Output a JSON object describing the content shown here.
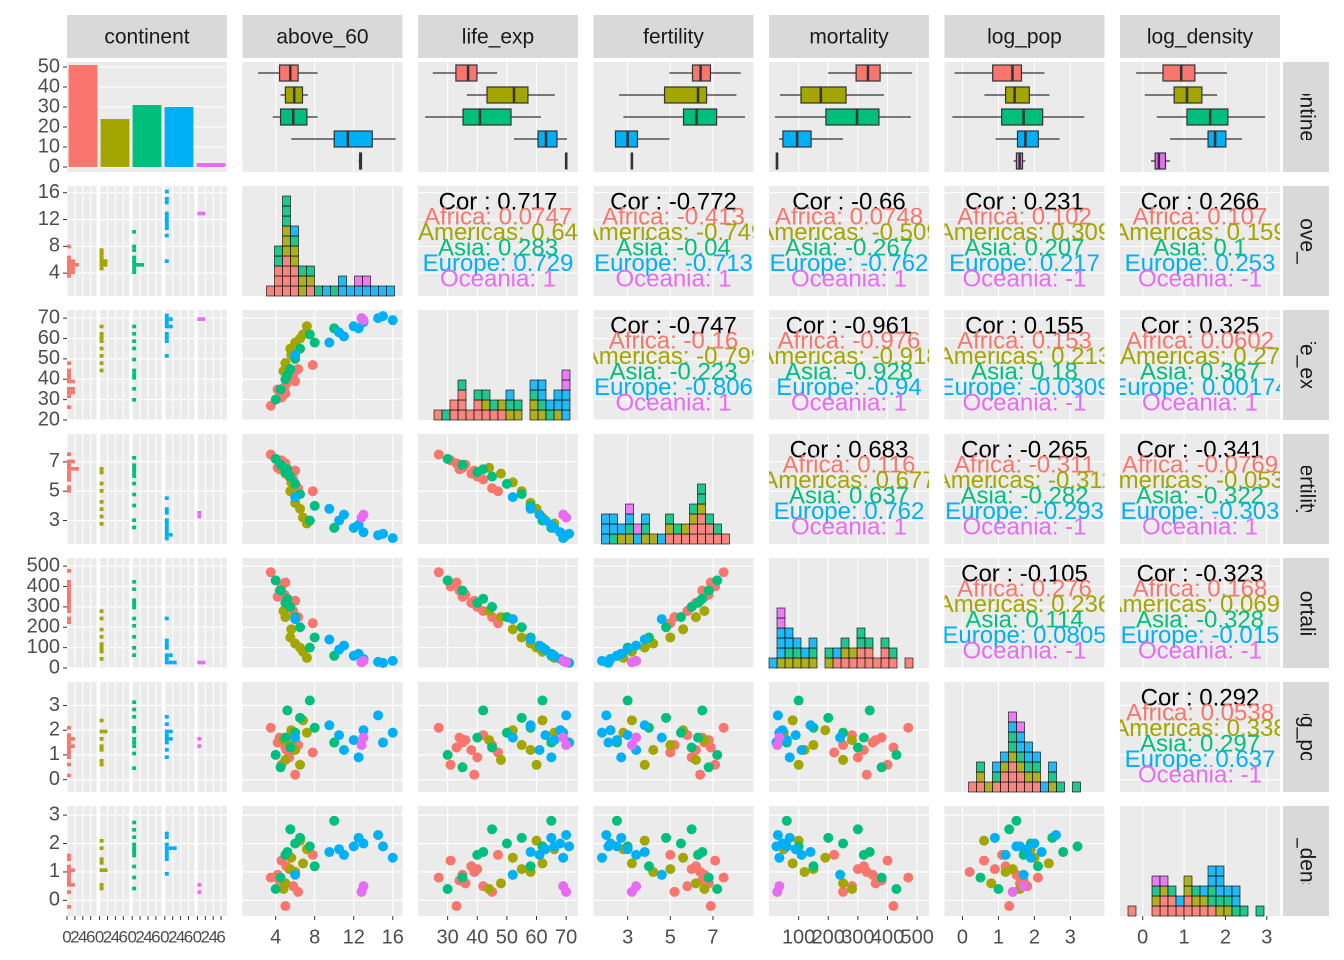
{
  "chart_data": {
    "type": "pairs",
    "variables": [
      "continent",
      "above_60",
      "life_exp",
      "fertility",
      "mortality",
      "log_pop",
      "log_density"
    ],
    "scales": [
      {
        "lim": [
          -2.5,
          52.5
        ],
        "yticks": [
          0,
          10,
          20,
          30,
          40,
          50
        ],
        "count_lim": [
          0,
          7.5
        ],
        "count_ticks": [
          0,
          2,
          4,
          6
        ]
      },
      {
        "lim": [
          0.6,
          17
        ],
        "xticks": [
          4,
          8,
          12,
          16
        ],
        "yticks": [
          4,
          8,
          12,
          16
        ]
      },
      {
        "lim": [
          20,
          74
        ],
        "xticks": [
          30,
          40,
          50,
          60,
          70
        ],
        "yticks": [
          20,
          30,
          40,
          50,
          60,
          70
        ]
      },
      {
        "lim": [
          1.4,
          8.9
        ],
        "xticks": [
          3,
          5,
          7
        ],
        "yticks": [
          3,
          5,
          7
        ]
      },
      {
        "lim": [
          0,
          540
        ],
        "xticks": [
          100,
          200,
          300,
          400,
          500
        ],
        "yticks": [
          0,
          100,
          200,
          300,
          400,
          500
        ]
      },
      {
        "lim": [
          -0.5,
          3.95
        ],
        "xticks": [
          0,
          1,
          2,
          3
        ],
        "yticks": [
          0,
          1,
          2,
          3
        ]
      },
      {
        "lim": [
          -0.55,
          3.32
        ],
        "xticks": [
          0,
          1,
          2,
          3
        ],
        "yticks": [
          0,
          1,
          2,
          3
        ]
      }
    ],
    "groups": [
      {
        "name": "Africa",
        "color": "#F8766D",
        "count": 51,
        "boxes": [
          [
            2.2,
            4.4,
            5.5,
            6.3,
            8.3
          ],
          [
            25,
            32.8,
            36.9,
            39.9,
            46.7
          ],
          [
            4.96,
            6.04,
            6.42,
            6.88,
            8.3
          ],
          [
            199,
            294,
            334,
            375,
            483
          ],
          [
            -0.22,
            0.84,
            1.39,
            1.64,
            2.28
          ],
          [
            -0.16,
            0.49,
            0.93,
            1.26,
            2.04
          ]
        ],
        "values": [
          [
            4.2,
            5.1,
            5.8,
            4.6,
            6.3,
            3.5,
            5.4,
            4.9,
            7.8,
            5.0,
            6.0,
            4.4
          ],
          [
            35,
            38,
            42,
            31,
            45,
            27,
            40,
            36,
            47,
            33,
            39,
            34
          ],
          [
            6.6,
            6.2,
            5.8,
            7.1,
            5.2,
            7.5,
            6.0,
            6.8,
            5.0,
            6.9,
            6.4,
            6.5
          ],
          [
            350,
            320,
            280,
            400,
            250,
            470,
            300,
            360,
            220,
            420,
            330,
            380
          ],
          [
            1.5,
            1.2,
            1.8,
            0.6,
            1.4,
            2.1,
            0.9,
            1.6,
            1.1,
            1.3,
            0.2,
            1.7
          ],
          [
            0.9,
            1.2,
            0.5,
            1.4,
            0.3,
            0.8,
            1.1,
            0.6,
            1.6,
            -0.2,
            1.0,
            0.7
          ]
        ]
      },
      {
        "name": "Americas",
        "color": "#A3A500",
        "count": 24,
        "boxes": [
          [
            4.5,
            5.0,
            5.9,
            6.75,
            7.3
          ],
          [
            36.5,
            43.3,
            52.4,
            57.1,
            66.2
          ],
          [
            2.6,
            4.73,
            6.3,
            6.7,
            8.1
          ],
          [
            37,
            108,
            175,
            260,
            388
          ],
          [
            0.61,
            1.2,
            1.45,
            1.86,
            2.42
          ],
          [
            0.05,
            0.76,
            1.07,
            1.43,
            1.8
          ]
        ],
        "values": [
          [
            5.5,
            6.8,
            5.0,
            7.2,
            6.0,
            4.8,
            5.6,
            6.5
          ],
          [
            55,
            62,
            48,
            66,
            58,
            44,
            52,
            60
          ],
          [
            5.0,
            3.2,
            6.2,
            2.8,
            4.2,
            6.6,
            5.6,
            3.8
          ],
          [
            150,
            80,
            250,
            50,
            120,
            280,
            190,
            100
          ],
          [
            1.4,
            2.4,
            0.8,
            1.9,
            1.2,
            1.6,
            2.0,
            0.6
          ],
          [
            1.1,
            1.3,
            0.6,
            1.8,
            1.0,
            0.4,
            1.5,
            2.1
          ]
        ]
      },
      {
        "name": "Asia",
        "color": "#00BF7D",
        "count": 31,
        "boxes": [
          [
            3.7,
            4.5,
            5.8,
            7.2,
            8.3
          ],
          [
            22.4,
            35.2,
            40.9,
            51.4,
            61.5
          ],
          [
            2.8,
            5.62,
            6.23,
            7.17,
            8.5
          ],
          [
            20,
            192,
            297,
            371,
            479
          ],
          [
            -0.28,
            1.09,
            1.7,
            2.23,
            3.39
          ],
          [
            0.34,
            1.07,
            1.63,
            2.06,
            2.96
          ]
        ],
        "values": [
          [
            5.0,
            6.5,
            4.0,
            7.5,
            5.5,
            8.0,
            4.5,
            6.0,
            5.2,
            10.0
          ],
          [
            40,
            55,
            30,
            62,
            45,
            58,
            35,
            50,
            42,
            65
          ],
          [
            6.3,
            4.8,
            7.2,
            3.0,
            6.0,
            4.0,
            6.8,
            5.5,
            6.5,
            2.5
          ],
          [
            320,
            200,
            430,
            100,
            300,
            150,
            380,
            250,
            340,
            60
          ],
          [
            1.7,
            2.5,
            1.0,
            3.2,
            1.3,
            2.1,
            0.5,
            1.9,
            2.8,
            1.5
          ],
          [
            1.6,
            2.2,
            0.4,
            1.9,
            2.5,
            1.2,
            0.8,
            2.0,
            1.7,
            2.8
          ]
        ]
      },
      {
        "name": "Europe",
        "color": "#00B0F6",
        "count": 30,
        "boxes": [
          [
            5.6,
            10.0,
            11.4,
            13.9,
            16.3
          ],
          [
            52.4,
            60.5,
            63.2,
            66.9,
            70.3
          ],
          [
            2.43,
            2.43,
            3.0,
            3.46,
            4.96
          ],
          [
            34,
            47,
            95,
            142,
            250
          ],
          [
            0.92,
            1.53,
            1.75,
            2.11,
            2.7
          ],
          [
            0.66,
            1.58,
            1.75,
            2.01,
            2.4
          ]
        ],
        "values": [
          [
            10.5,
            12,
            14.5,
            11,
            13,
            16,
            9.5,
            12.5,
            15,
            6
          ],
          [
            63,
            66,
            70,
            61,
            68,
            69,
            58,
            65,
            71,
            52
          ],
          [
            3.0,
            2.5,
            2.0,
            3.4,
            2.2,
            1.8,
            3.8,
            2.7,
            2.1,
            4.6
          ],
          [
            90,
            60,
            30,
            110,
            45,
            35,
            140,
            70,
            25,
            240
          ],
          [
            1.8,
            1.6,
            2.6,
            1.2,
            2.0,
            1.9,
            2.2,
            0.9,
            1.5,
            1.7
          ],
          [
            1.8,
            1.9,
            2.3,
            1.6,
            2.0,
            1.5,
            1.7,
            2.2,
            1.9,
            0.9
          ]
        ]
      },
      {
        "name": "Oceania",
        "color": "#E76BF3",
        "count": 2,
        "boxes": [
          [
            12.5,
            12.6,
            12.7,
            12.8,
            12.8
          ],
          [
            69.8,
            69.9,
            70,
            70.1,
            70.2
          ],
          [
            3.15,
            3.18,
            3.2,
            3.22,
            3.25
          ],
          [
            24,
            25,
            27,
            29,
            30
          ],
          [
            1.42,
            1.5,
            1.59,
            1.67,
            1.75
          ],
          [
            0.2,
            0.3,
            0.39,
            0.55,
            0.66
          ]
        ],
        "values": [
          [
            12.8,
            13.0
          ],
          [
            70,
            69
          ],
          [
            3.2,
            3.4
          ],
          [
            28,
            35
          ],
          [
            1.4,
            1.7
          ],
          [
            0.3,
            0.5
          ]
        ]
      }
    ],
    "correlations": [
      [
        {
          "overall": "Cor : 0.717",
          "groups": [
            "Africa: 0.0747",
            "Americas: 0.64",
            "Asia: 0.283",
            "Europe: 0.729",
            "Oceania: 1"
          ]
        },
        {
          "overall": "Cor : -0.772",
          "groups": [
            "Africa: -0.413",
            "Americas: -0.749",
            "Asia: -0.04",
            "Europe: -0.713",
            "Oceania: 1"
          ]
        },
        {
          "overall": "Cor : -0.66",
          "groups": [
            "Africa: 0.0748",
            "Americas: -0.509",
            "Asia: -0.267",
            "Europe: -0.762",
            "Oceania: 1"
          ]
        },
        {
          "overall": "Cor : 0.231",
          "groups": [
            "Africa: 0.102",
            "Americas: 0.309",
            "Asia: 0.207",
            "Europe: 0.217",
            "Oceania: -1"
          ]
        },
        {
          "overall": "Cor : 0.266",
          "groups": [
            "Africa: 0.107",
            "Americas: 0.159",
            "Asia: 0.1",
            "Europe: 0.253",
            "Oceania: -1"
          ]
        }
      ],
      [
        {
          "overall": "Cor : -0.747",
          "groups": [
            "Africa: -0.16",
            "Americas: -0.799",
            "Asia: -0.223",
            "Europe: -0.806",
            "Oceania: 1"
          ]
        },
        {
          "overall": "Cor : -0.961",
          "groups": [
            "Africa: -0.976",
            "Americas: -0.918",
            "Asia: -0.928",
            "Europe: -0.94",
            "Oceania: 1"
          ]
        },
        {
          "overall": "Cor : 0.155",
          "groups": [
            "Africa: 0.153",
            "Americas: 0.213",
            "Asia: 0.18",
            "Europe: -0.0309",
            "Oceania: -1"
          ]
        },
        {
          "overall": "Cor : 0.325",
          "groups": [
            "Africa: 0.0602",
            "Americas: 0.27",
            "Asia: 0.367",
            "Europe: 0.00174",
            "Oceania: 1"
          ]
        }
      ],
      [
        {
          "overall": "Cor : 0.683",
          "groups": [
            "Africa: 0.116",
            "Americas: 0.677",
            "Asia: 0.637",
            "Europe: 0.762",
            "Oceania: 1"
          ]
        },
        {
          "overall": "Cor : -0.265",
          "groups": [
            "Africa: -0.311",
            "Americas: -0.311",
            "Asia: -0.282",
            "Europe: -0.293",
            "Oceania: -1"
          ]
        },
        {
          "overall": "Cor : -0.341",
          "groups": [
            "Africa: -0.0769",
            "Americas: -0.0532",
            "Asia: -0.322",
            "Europe: -0.303",
            "Oceania: 1"
          ]
        }
      ],
      [
        {
          "overall": "Cor : -0.105",
          "groups": [
            "Africa: 0.276",
            "Americas: 0.236",
            "Asia: 0.114",
            "Europe: 0.0805",
            "Oceania: -1"
          ]
        },
        {
          "overall": "Cor : -0.323",
          "groups": [
            "Africa: 0.168",
            "Americas: 0.0699",
            "Asia: -0.328",
            "Europe: -0.015",
            "Oceania: -1"
          ]
        }
      ],
      [
        {
          "overall": "Cor : 0.292",
          "groups": [
            "Africa: 0.0538",
            "Americas: 0.338",
            "Asia: 0.297",
            "Europe: 0.637",
            "Oceania: -1"
          ]
        }
      ]
    ]
  }
}
